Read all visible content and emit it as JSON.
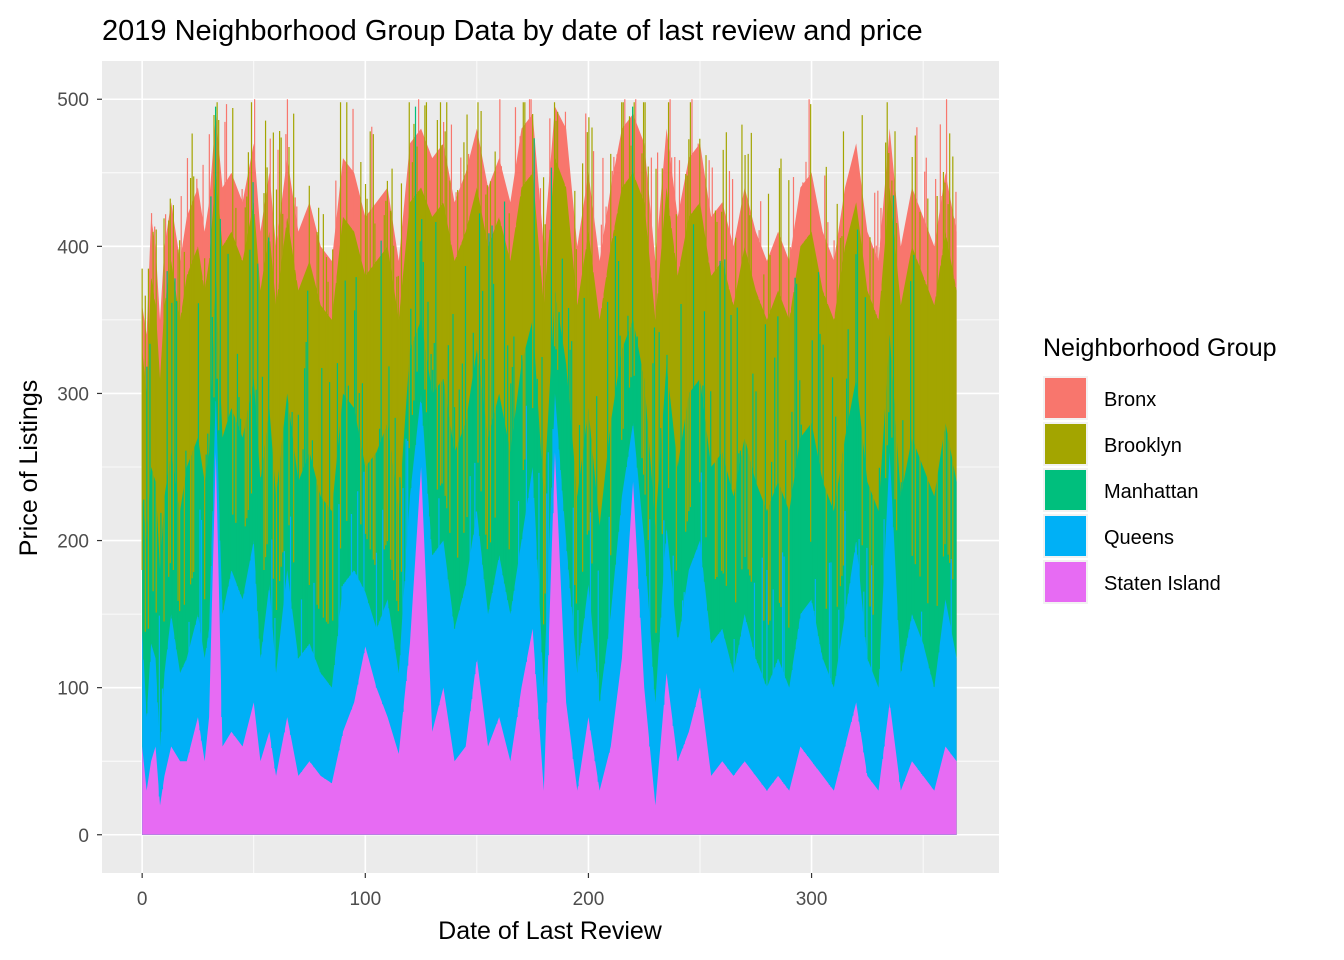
{
  "chart_data": {
    "type": "area",
    "title": "2019 Neighborhood Group Data by date of last review and price",
    "xlabel": "Date of Last Review",
    "ylabel": "Price of Listings",
    "xlim": [
      -18,
      384
    ],
    "ylim": [
      -26,
      526
    ],
    "x_ticks": [
      0,
      100,
      200,
      300
    ],
    "y_ticks": [
      0,
      100,
      200,
      300,
      400,
      500
    ],
    "grid": true,
    "legend": {
      "title": "Neighborhood Group",
      "position": "right"
    },
    "series": [
      {
        "name": "Bronx",
        "color": "#F8766D"
      },
      {
        "name": "Brooklyn",
        "color": "#A3A500"
      },
      {
        "name": "Manhattan",
        "color": "#00BF7D"
      },
      {
        "name": "Queens",
        "color": "#00B0F6"
      },
      {
        "name": "Staten Island",
        "color": "#E76BF3"
      }
    ],
    "x": [
      0,
      2,
      4,
      6,
      8,
      10,
      13,
      17,
      20,
      25,
      28,
      30,
      33,
      36,
      40,
      45,
      50,
      53,
      57,
      60,
      65,
      70,
      75,
      80,
      85,
      90,
      95,
      100,
      105,
      110,
      115,
      120,
      125,
      130,
      135,
      140,
      145,
      150,
      155,
      160,
      165,
      170,
      175,
      180,
      185,
      190,
      195,
      200,
      205,
      210,
      215,
      220,
      225,
      230,
      235,
      240,
      245,
      250,
      255,
      260,
      265,
      270,
      275,
      280,
      285,
      290,
      295,
      300,
      305,
      310,
      315,
      320,
      325,
      330,
      335,
      340,
      345,
      350,
      355,
      360,
      365
    ],
    "stack_tops": {
      "Staten Island": [
        60,
        30,
        50,
        60,
        20,
        40,
        60,
        50,
        50,
        80,
        50,
        80,
        260,
        60,
        70,
        60,
        90,
        50,
        70,
        40,
        80,
        40,
        50,
        40,
        35,
        70,
        90,
        128,
        100,
        80,
        55,
        130,
        250,
        70,
        100,
        50,
        60,
        120,
        60,
        80,
        50,
        100,
        140,
        30,
        260,
        90,
        30,
        80,
        30,
        60,
        120,
        240,
        100,
        20,
        110,
        50,
        70,
        100,
        40,
        50,
        40,
        50,
        40,
        30,
        40,
        30,
        60,
        50,
        40,
        30,
        60,
        90,
        40,
        30,
        90,
        30,
        50,
        40,
        30,
        60,
        50
      ],
      "Queens": [
        140,
        80,
        130,
        120,
        60,
        110,
        150,
        110,
        120,
        150,
        120,
        140,
        300,
        150,
        180,
        160,
        200,
        120,
        170,
        110,
        180,
        120,
        130,
        110,
        100,
        170,
        180,
        165,
        140,
        160,
        110,
        230,
        300,
        190,
        200,
        140,
        170,
        220,
        150,
        190,
        150,
        200,
        250,
        100,
        300,
        200,
        110,
        170,
        90,
        150,
        230,
        280,
        200,
        90,
        210,
        130,
        180,
        200,
        130,
        140,
        110,
        150,
        120,
        100,
        120,
        100,
        150,
        160,
        120,
        100,
        150,
        200,
        120,
        100,
        260,
        110,
        150,
        130,
        100,
        160,
        120
      ],
      "Manhattan": [
        230,
        200,
        250,
        240,
        180,
        230,
        260,
        220,
        250,
        270,
        240,
        260,
        380,
        270,
        290,
        270,
        310,
        240,
        290,
        230,
        300,
        240,
        260,
        230,
        220,
        300,
        290,
        250,
        260,
        280,
        220,
        330,
        350,
        300,
        310,
        260,
        280,
        330,
        270,
        300,
        260,
        320,
        350,
        230,
        370,
        320,
        230,
        290,
        210,
        280,
        330,
        350,
        310,
        210,
        320,
        250,
        300,
        310,
        250,
        260,
        230,
        270,
        240,
        220,
        240,
        220,
        270,
        280,
        240,
        220,
        270,
        310,
        240,
        220,
        340,
        230,
        270,
        250,
        230,
        280,
        240
      ],
      "Brooklyn": [
        330,
        300,
        380,
        360,
        310,
        360,
        390,
        350,
        380,
        400,
        370,
        390,
        450,
        400,
        410,
        390,
        430,
        370,
        410,
        360,
        420,
        370,
        390,
        360,
        350,
        420,
        410,
        380,
        390,
        400,
        350,
        430,
        440,
        420,
        430,
        390,
        410,
        440,
        400,
        420,
        390,
        440,
        450,
        360,
        460,
        440,
        360,
        410,
        350,
        400,
        440,
        450,
        430,
        350,
        440,
        380,
        420,
        430,
        380,
        390,
        360,
        400,
        370,
        350,
        370,
        350,
        400,
        410,
        370,
        350,
        400,
        430,
        370,
        350,
        440,
        360,
        400,
        380,
        360,
        410,
        370
      ],
      "Bronx": [
        360,
        340,
        420,
        400,
        350,
        400,
        430,
        390,
        420,
        440,
        410,
        430,
        490,
        440,
        450,
        430,
        470,
        410,
        450,
        400,
        460,
        410,
        430,
        400,
        390,
        460,
        450,
        420,
        430,
        440,
        390,
        470,
        480,
        460,
        470,
        430,
        450,
        480,
        440,
        460,
        430,
        480,
        490,
        400,
        495,
        480,
        400,
        450,
        390,
        440,
        480,
        490,
        470,
        390,
        480,
        420,
        460,
        470,
        420,
        430,
        400,
        440,
        410,
        390,
        410,
        390,
        440,
        450,
        410,
        390,
        440,
        470,
        410,
        390,
        480,
        400,
        440,
        420,
        400,
        450,
        410
      ]
    }
  }
}
